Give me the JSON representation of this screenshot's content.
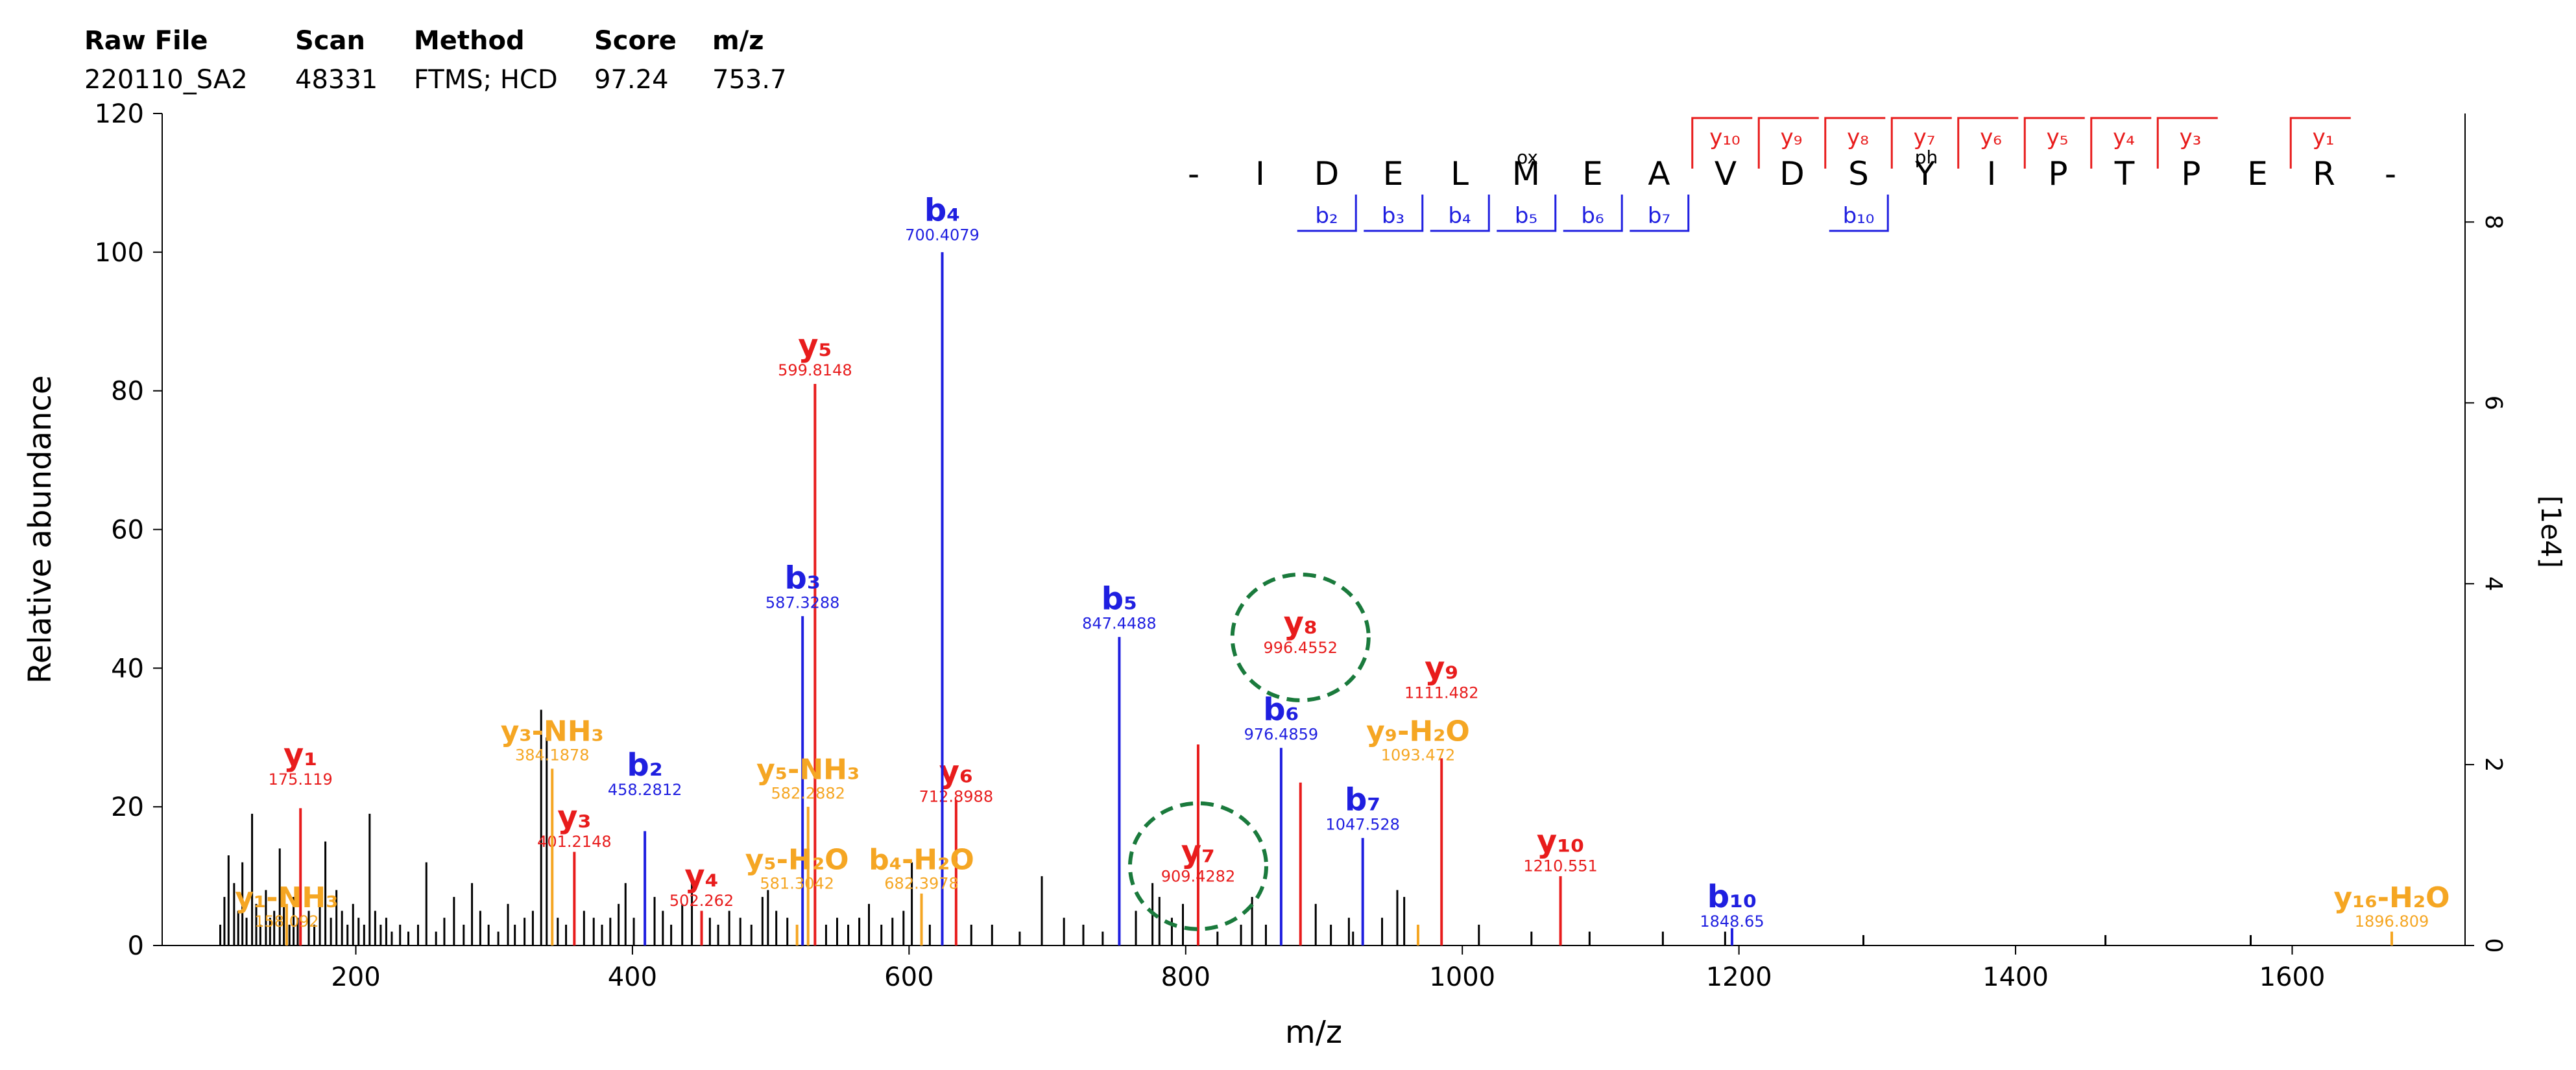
{
  "header": {
    "labels": [
      "Raw File",
      "Scan",
      "Method",
      "Score",
      "m/z"
    ],
    "values": [
      "220110_SA2",
      "48331",
      "FTMS; HCD",
      "97.24",
      "753.7"
    ]
  },
  "chart_data": {
    "type": "bar",
    "title": "",
    "xlabel": "m/z",
    "ylabel": "Relative abundance",
    "right_axis_label": "[1e4]",
    "xlim": [
      60,
      1725
    ],
    "ylim": [
      0,
      120
    ],
    "x_ticks": [
      200,
      400,
      600,
      800,
      1000,
      1200,
      1400,
      1600
    ],
    "y_ticks": [
      0,
      20,
      40,
      60,
      80,
      100,
      120
    ],
    "right_ticks": [
      "0",
      "2",
      "4",
      "6",
      "8"
    ],
    "right_max": 9.2,
    "colors": {
      "b": "#1f1fe0",
      "y": "#e81c1c",
      "neutral": "#f5a623",
      "unannotated": "#000000",
      "circle": "#1a7a3c"
    },
    "sequence": [
      "-",
      "I",
      "D",
      "E",
      "L",
      "M",
      "E",
      "A",
      "V",
      "D",
      "S",
      "Y",
      "I",
      "P",
      "T",
      "P",
      "E",
      "R",
      "-"
    ],
    "modifications": [
      {
        "residue_index": 5,
        "label": "ox"
      },
      {
        "residue_index": 11,
        "label": "ph"
      }
    ],
    "y_fragments": [
      {
        "residue_index": 8,
        "label": "y10"
      },
      {
        "residue_index": 9,
        "label": "y9"
      },
      {
        "residue_index": 10,
        "label": "y8"
      },
      {
        "residue_index": 11,
        "label": "y7"
      },
      {
        "residue_index": 12,
        "label": "y6"
      },
      {
        "residue_index": 13,
        "label": "y5"
      },
      {
        "residue_index": 14,
        "label": "y4"
      },
      {
        "residue_index": 15,
        "label": "y3"
      },
      {
        "residue_index": 17,
        "label": "y1"
      }
    ],
    "b_fragments": [
      {
        "residue_index": 2,
        "label": "b2"
      },
      {
        "residue_index": 3,
        "label": "b3"
      },
      {
        "residue_index": 4,
        "label": "b4"
      },
      {
        "residue_index": 5,
        "label": "b5"
      },
      {
        "residue_index": 6,
        "label": "b6"
      },
      {
        "residue_index": 7,
        "label": "b7"
      },
      {
        "residue_index": 10,
        "label": "b10"
      }
    ],
    "annotated_peaks": [
      {
        "ion": "y1",
        "type": "y",
        "mz": 160.0,
        "intensity": 19.8,
        "mz_label": "175.119",
        "ion_y": 26.0
      },
      {
        "ion": "y3",
        "type": "y",
        "mz": 358.0,
        "intensity": 13.5,
        "mz_label": "401.2148",
        "ion_y": 17.0
      },
      {
        "ion": "y4",
        "type": "y",
        "mz": 450.0,
        "intensity": 5.0,
        "mz_label": "502.262",
        "ion_y": 8.5
      },
      {
        "ion": "y5",
        "type": "y",
        "mz": 532.0,
        "intensity": 81.0,
        "mz_label": "599.8148",
        "ion_y": 85.0
      },
      {
        "ion": "y6",
        "type": "y",
        "mz": 634.0,
        "intensity": 21.0,
        "mz_label": "712.8988",
        "ion_y": 23.5
      },
      {
        "ion": "y7",
        "type": "y",
        "mz": 809.0,
        "intensity": 29.0,
        "mz_label": "909.4282",
        "ion_y": 12.0
      },
      {
        "ion": "y8",
        "type": "y",
        "mz": 883.0,
        "intensity": 23.5,
        "mz_label": "996.4552",
        "ion_y": 45.0
      },
      {
        "ion": "y9",
        "type": "y",
        "mz": 985.0,
        "intensity": 27.0,
        "mz_label": "1111.482",
        "ion_y": 38.5
      },
      {
        "ion": "y10",
        "type": "y",
        "mz": 1071.0,
        "intensity": 10.0,
        "mz_label": "1210.551",
        "ion_y": 13.5
      },
      {
        "ion": "b2",
        "type": "b",
        "mz": 409.0,
        "intensity": 16.5,
        "mz_label": "458.2812",
        "ion_y": 24.5
      },
      {
        "ion": "b3",
        "type": "b",
        "mz": 523.0,
        "intensity": 47.5,
        "mz_label": "587.3288",
        "ion_y": 51.5
      },
      {
        "ion": "b4",
        "type": "b",
        "mz": 624.0,
        "intensity": 100.0,
        "mz_label": "700.4079",
        "ion_y": 104.5
      },
      {
        "ion": "b5",
        "type": "b",
        "mz": 752.0,
        "intensity": 44.5,
        "mz_label": "847.4488",
        "ion_y": 48.5
      },
      {
        "ion": "b6",
        "type": "b",
        "mz": 869.0,
        "intensity": 28.5,
        "mz_label": "976.4859",
        "ion_y": 32.5
      },
      {
        "ion": "b7",
        "type": "b",
        "mz": 928.0,
        "intensity": 15.5,
        "mz_label": "1047.528",
        "ion_y": 19.5
      },
      {
        "ion": "b10",
        "type": "b",
        "mz": 1195.0,
        "intensity": 2.5,
        "mz_label": "1848.65",
        "ion_y": 5.5
      },
      {
        "ion": "y3-NH3",
        "type": "neutral",
        "mz": 342.0,
        "intensity": 25.5,
        "mz_label": "384.1878",
        "ion_y": 29.5
      },
      {
        "ion": "y5-NH3",
        "type": "neutral",
        "mz": 527.0,
        "intensity": 20.0,
        "mz_label": "582.2882",
        "ion_y": 24.0
      },
      {
        "ion": "y5-H2O",
        "type": "neutral",
        "mz": 519.0,
        "intensity": 3.0,
        "mz_label": "581.3042",
        "ion_y": 11.0
      },
      {
        "ion": "b4-H2O",
        "type": "neutral",
        "mz": 609.0,
        "intensity": 7.5,
        "mz_label": "682.3978",
        "ion_y": 11.0
      },
      {
        "ion": "y1-NH3",
        "type": "neutral",
        "mz": 150.0,
        "intensity": 6.0,
        "mz_label": "158.092",
        "ion_y": 5.5
      },
      {
        "ion": "y9-H2O",
        "type": "neutral",
        "mz": 968.0,
        "intensity": 3.0,
        "mz_label": "1093.472",
        "ion_y": 29.5
      },
      {
        "ion": "y16-H2O",
        "type": "neutral",
        "mz": 1672.0,
        "intensity": 2.0,
        "mz_label": "1896.809",
        "ion_y": 5.5
      }
    ],
    "circled_ions": [
      "y7",
      "y8"
    ],
    "unannotated_peaks": [
      [
        102,
        3
      ],
      [
        105,
        7
      ],
      [
        108,
        13
      ],
      [
        112,
        9
      ],
      [
        115,
        5
      ],
      [
        118,
        12
      ],
      [
        121,
        4
      ],
      [
        125,
        19
      ],
      [
        128,
        6
      ],
      [
        131,
        3
      ],
      [
        135,
        8
      ],
      [
        138,
        4
      ],
      [
        141,
        5
      ],
      [
        145,
        14
      ],
      [
        148,
        6
      ],
      [
        152,
        3
      ],
      [
        155,
        7
      ],
      [
        158,
        4
      ],
      [
        166,
        5
      ],
      [
        170,
        3
      ],
      [
        174,
        6
      ],
      [
        178,
        15
      ],
      [
        182,
        4
      ],
      [
        186,
        8
      ],
      [
        190,
        5
      ],
      [
        194,
        3
      ],
      [
        198,
        6
      ],
      [
        202,
        4
      ],
      [
        206,
        3
      ],
      [
        210,
        19
      ],
      [
        214,
        5
      ],
      [
        218,
        3
      ],
      [
        222,
        4
      ],
      [
        226,
        2
      ],
      [
        232,
        3
      ],
      [
        238,
        2
      ],
      [
        245,
        3
      ],
      [
        251,
        12
      ],
      [
        258,
        2
      ],
      [
        264,
        4
      ],
      [
        271,
        7
      ],
      [
        278,
        3
      ],
      [
        284,
        9
      ],
      [
        290,
        5
      ],
      [
        296,
        3
      ],
      [
        303,
        2
      ],
      [
        310,
        6
      ],
      [
        315,
        3
      ],
      [
        322,
        4
      ],
      [
        328,
        5
      ],
      [
        334,
        34
      ],
      [
        338,
        30
      ],
      [
        346,
        4
      ],
      [
        352,
        3
      ],
      [
        365,
        5
      ],
      [
        372,
        4
      ],
      [
        378,
        3
      ],
      [
        384,
        4
      ],
      [
        390,
        6
      ],
      [
        395,
        9
      ],
      [
        401,
        4
      ],
      [
        416,
        7
      ],
      [
        422,
        5
      ],
      [
        428,
        3
      ],
      [
        436,
        6
      ],
      [
        443,
        9
      ],
      [
        456,
        4
      ],
      [
        462,
        3
      ],
      [
        470,
        5
      ],
      [
        478,
        4
      ],
      [
        486,
        3
      ],
      [
        494,
        7
      ],
      [
        498,
        8
      ],
      [
        504,
        5
      ],
      [
        512,
        4
      ],
      [
        540,
        3
      ],
      [
        548,
        4
      ],
      [
        556,
        3
      ],
      [
        564,
        4
      ],
      [
        571,
        6
      ],
      [
        580,
        3
      ],
      [
        588,
        4
      ],
      [
        596,
        5
      ],
      [
        602,
        12
      ],
      [
        615,
        3
      ],
      [
        645,
        3
      ],
      [
        660,
        3
      ],
      [
        680,
        2
      ],
      [
        696,
        10
      ],
      [
        712,
        4
      ],
      [
        726,
        3
      ],
      [
        740,
        2
      ],
      [
        764,
        5
      ],
      [
        776,
        9
      ],
      [
        781,
        7
      ],
      [
        790,
        4
      ],
      [
        798,
        6
      ],
      [
        823,
        2
      ],
      [
        840,
        3
      ],
      [
        848,
        7
      ],
      [
        858,
        3
      ],
      [
        894,
        6
      ],
      [
        905,
        3
      ],
      [
        918,
        4
      ],
      [
        921,
        2
      ],
      [
        942,
        4
      ],
      [
        953,
        8
      ],
      [
        958,
        7
      ],
      [
        1012,
        3
      ],
      [
        1050,
        2
      ],
      [
        1092,
        2
      ],
      [
        1145,
        2
      ],
      [
        1190,
        2
      ],
      [
        1290,
        1.5
      ],
      [
        1465,
        1.5
      ],
      [
        1570,
        1.5
      ]
    ]
  }
}
